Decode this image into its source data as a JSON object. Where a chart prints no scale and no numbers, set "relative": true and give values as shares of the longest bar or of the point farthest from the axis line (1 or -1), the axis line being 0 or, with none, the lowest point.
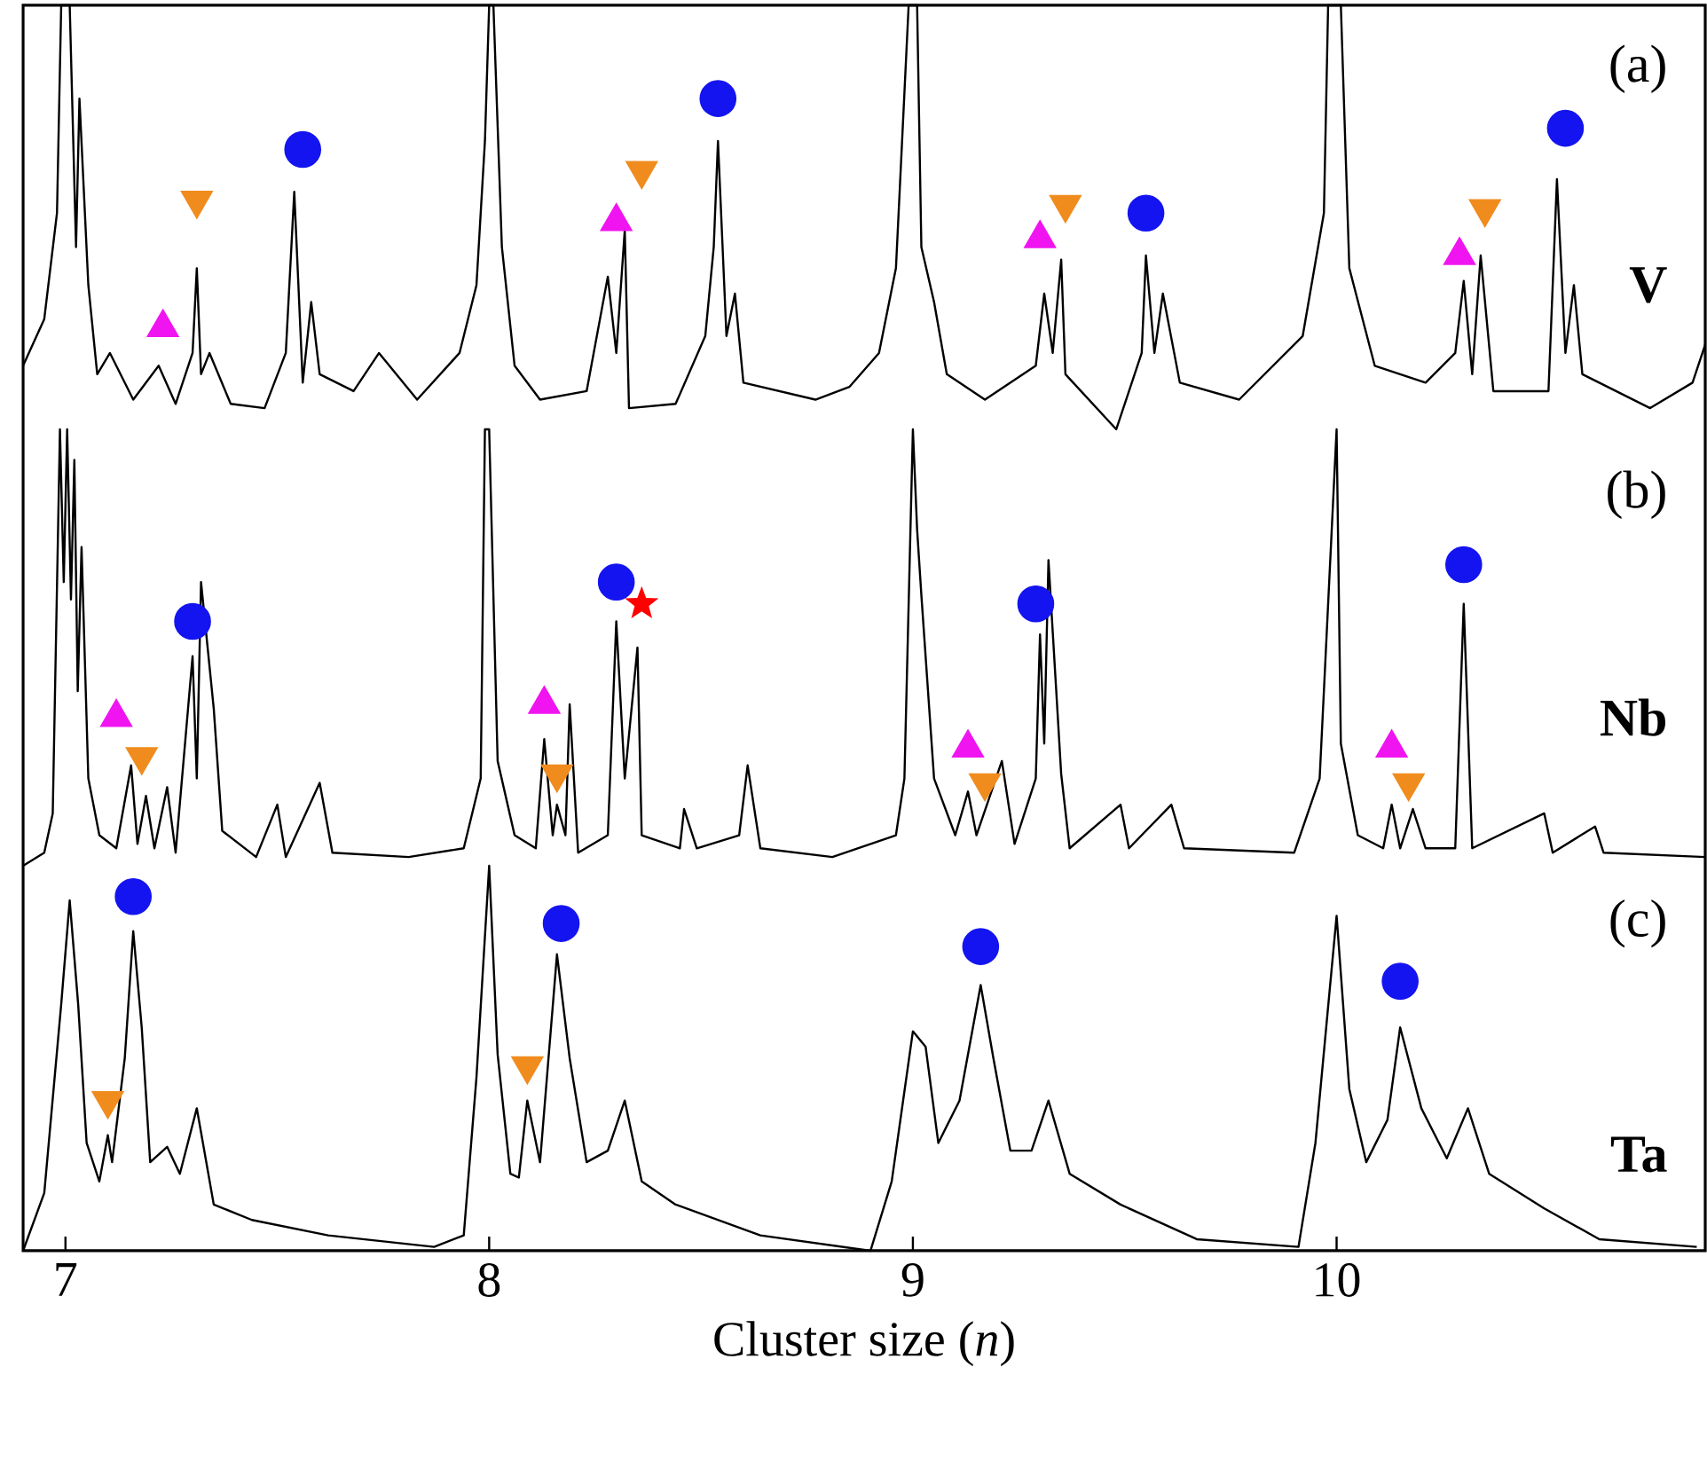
{
  "chart_data": [
    {
      "type": "line",
      "relative": true,
      "xlim": [
        6.9,
        10.87
      ],
      "tick_labels": false,
      "annotations": [
        "(a)"
      ],
      "series": [
        {
          "name": "V",
          "color": "#000000",
          "x": [
            6.9,
            6.95,
            6.98,
            6.99,
            7.01,
            7.025,
            7.033,
            7.054,
            7.075,
            7.105,
            7.16,
            7.22,
            7.26,
            7.3,
            7.31,
            7.32,
            7.34,
            7.39,
            7.47,
            7.52,
            7.54,
            7.56,
            7.58,
            7.6,
            7.68,
            7.74,
            7.83,
            7.93,
            7.97,
            7.99,
            8.0,
            8.01,
            8.03,
            8.06,
            8.12,
            8.23,
            8.28,
            8.3,
            8.32,
            8.33,
            8.44,
            8.51,
            8.53,
            8.54,
            8.56,
            8.58,
            8.6,
            8.77,
            8.85,
            8.92,
            8.96,
            8.99,
            9.01,
            9.02,
            9.05,
            9.08,
            9.17,
            9.29,
            9.31,
            9.33,
            9.35,
            9.36,
            9.48,
            9.54,
            9.55,
            9.57,
            9.59,
            9.63,
            9.77,
            9.92,
            9.97,
            9.98,
            10.01,
            10.03,
            10.09,
            10.21,
            10.28,
            10.3,
            10.32,
            10.34,
            10.37,
            10.5,
            10.52,
            10.54,
            10.56,
            10.58,
            10.74,
            10.84,
            10.87
          ],
          "values": [
            0.15,
            0.26,
            0.51,
            1,
            1,
            0.43,
            0.78,
            0.34,
            0.13,
            0.18,
            0.07,
            0.15,
            0.06,
            0.18,
            0.38,
            0.13,
            0.18,
            0.06,
            0.05,
            0.18,
            0.56,
            0.11,
            0.3,
            0.13,
            0.09,
            0.18,
            0.07,
            0.18,
            0.34,
            0.68,
            1,
            1,
            0.43,
            0.15,
            0.07,
            0.09,
            0.36,
            0.18,
            0.47,
            0.05,
            0.06,
            0.22,
            0.43,
            0.68,
            0.22,
            0.32,
            0.11,
            0.07,
            0.1,
            0.18,
            0.38,
            1,
            1,
            0.43,
            0.3,
            0.13,
            0.07,
            0.15,
            0.32,
            0.18,
            0.4,
            0.13,
            0,
            0.18,
            0.41,
            0.18,
            0.32,
            0.11,
            0.07,
            0.22,
            0.51,
            1,
            1,
            0.38,
            0.15,
            0.11,
            0.18,
            0.35,
            0.13,
            0.41,
            0.09,
            0.09,
            0.59,
            0.18,
            0.34,
            0.13,
            0.05,
            0.11,
            0.2
          ]
        },
        {
          "type": "scatter",
          "marker": "circle",
          "color": "#1414f0",
          "x": [
            7.56,
            8.54,
            9.55,
            10.54
          ],
          "values": [
            0.66,
            0.78,
            0.51,
            0.71
          ]
        },
        {
          "type": "scatter",
          "marker": "triangle",
          "color": "#f014f0",
          "x": [
            7.23,
            8.3,
            9.3,
            10.29
          ],
          "values": [
            0.24,
            0.49,
            0.45,
            0.41
          ]
        },
        {
          "type": "scatter",
          "marker": "triangle-down",
          "color": "#f08c1e",
          "x": [
            7.31,
            8.36,
            9.36,
            10.35
          ],
          "values": [
            0.54,
            0.61,
            0.53,
            0.52
          ]
        }
      ]
    },
    {
      "type": "line",
      "relative": true,
      "xlim": [
        6.9,
        10.87
      ],
      "tick_labels": false,
      "annotations": [
        "(b)"
      ],
      "series": [
        {
          "name": "Nb",
          "color": "#000000",
          "x": [
            6.9,
            6.95,
            6.97,
            6.987,
            6.996,
            7.004,
            7.013,
            7.021,
            7.029,
            7.038,
            7.054,
            7.08,
            7.12,
            7.155,
            7.17,
            7.19,
            7.21,
            7.24,
            7.26,
            7.3,
            7.31,
            7.32,
            7.35,
            7.37,
            7.45,
            7.5,
            7.52,
            7.6,
            7.63,
            7.81,
            7.94,
            7.98,
            7.99,
            8.0,
            8.02,
            8.06,
            8.11,
            8.13,
            8.15,
            8.16,
            8.18,
            8.19,
            8.21,
            8.28,
            8.3,
            8.32,
            8.35,
            8.36,
            8.45,
            8.46,
            8.49,
            8.59,
            8.61,
            8.64,
            8.81,
            8.96,
            8.98,
            9.0,
            9.01,
            9.02,
            9.05,
            9.1,
            9.13,
            9.15,
            9.21,
            9.24,
            9.29,
            9.3,
            9.31,
            9.32,
            9.35,
            9.37,
            9.49,
            9.51,
            9.61,
            9.64,
            9.9,
            9.96,
            10.0,
            10.01,
            10.05,
            10.11,
            10.13,
            10.15,
            10.18,
            10.21,
            10.28,
            10.3,
            10.32,
            10.49,
            10.51,
            10.61,
            10.63,
            10.87
          ],
          "values": [
            0,
            0.03,
            0.12,
            1,
            0.65,
            1,
            0.61,
            0.93,
            0.4,
            0.73,
            0.2,
            0.07,
            0.04,
            0.23,
            0.05,
            0.16,
            0.04,
            0.18,
            0.03,
            0.48,
            0.2,
            0.65,
            0.36,
            0.08,
            0.02,
            0.14,
            0.02,
            0.19,
            0.03,
            0.02,
            0.04,
            0.2,
            1,
            1,
            0.24,
            0.07,
            0.04,
            0.29,
            0.07,
            0.14,
            0.07,
            0.37,
            0.03,
            0.07,
            0.56,
            0.2,
            0.5,
            0.07,
            0.04,
            0.13,
            0.04,
            0.07,
            0.23,
            0.04,
            0.02,
            0.07,
            0.2,
            1,
            0.77,
            0.62,
            0.2,
            0.07,
            0.17,
            0.07,
            0.24,
            0.05,
            0.2,
            0.53,
            0.28,
            0.7,
            0.21,
            0.04,
            0.14,
            0.04,
            0.14,
            0.04,
            0.03,
            0.2,
            1,
            0.28,
            0.07,
            0.04,
            0.14,
            0.04,
            0.13,
            0.04,
            0.04,
            0.6,
            0.04,
            0.12,
            0.03,
            0.09,
            0.03,
            0.02
          ]
        },
        {
          "type": "scatter",
          "marker": "circle",
          "color": "#1414f0",
          "x": [
            7.3,
            8.3,
            9.29,
            10.3
          ],
          "values": [
            0.56,
            0.65,
            0.6,
            0.69
          ]
        },
        {
          "type": "scatter",
          "marker": "triangle",
          "color": "#f014f0",
          "x": [
            7.12,
            8.13,
            9.13,
            10.13
          ],
          "values": [
            0.34,
            0.37,
            0.27,
            0.27
          ]
        },
        {
          "type": "scatter",
          "marker": "triangle-down",
          "color": "#f08c1e",
          "x": [
            7.18,
            8.16,
            9.17,
            10.17
          ],
          "values": [
            0.25,
            0.21,
            0.19,
            0.19
          ]
        },
        {
          "type": "scatter",
          "marker": "star",
          "color": "#ff0000",
          "x": [
            8.36
          ],
          "values": [
            0.6
          ]
        }
      ]
    },
    {
      "type": "line",
      "relative": true,
      "xlim": [
        6.9,
        10.87
      ],
      "xticks": [
        7,
        8,
        9,
        10
      ],
      "tick_labels": "x",
      "xlabel": "Cluster size (*n*)",
      "annotations": [
        "(c)"
      ],
      "series": [
        {
          "name": "Ta",
          "color": "#000000",
          "x": [
            6.9,
            6.95,
            6.99,
            7.01,
            7.03,
            7.05,
            7.08,
            7.1,
            7.11,
            7.14,
            7.16,
            7.18,
            7.2,
            7.24,
            7.27,
            7.31,
            7.35,
            7.44,
            7.62,
            7.87,
            7.94,
            7.97,
            8.0,
            8.02,
            8.05,
            8.07,
            8.09,
            8.12,
            8.16,
            8.19,
            8.23,
            8.28,
            8.32,
            8.36,
            8.44,
            8.64,
            8.9,
            8.95,
            9.0,
            9.03,
            9.06,
            9.11,
            9.16,
            9.19,
            9.23,
            9.28,
            9.32,
            9.37,
            9.49,
            9.67,
            9.91,
            9.95,
            10.0,
            10.03,
            10.07,
            10.12,
            10.15,
            10.2,
            10.26,
            10.31,
            10.36,
            10.49,
            10.62,
            10.85
          ],
          "values": [
            0,
            0.15,
            0.64,
            0.91,
            0.64,
            0.28,
            0.18,
            0.3,
            0.23,
            0.5,
            0.83,
            0.58,
            0.23,
            0.27,
            0.2,
            0.37,
            0.12,
            0.08,
            0.04,
            0.01,
            0.04,
            0.45,
            1,
            0.51,
            0.2,
            0.19,
            0.39,
            0.23,
            0.77,
            0.5,
            0.23,
            0.26,
            0.39,
            0.18,
            0.12,
            0.04,
            0,
            0.18,
            0.57,
            0.53,
            0.28,
            0.39,
            0.69,
            0.5,
            0.26,
            0.26,
            0.39,
            0.2,
            0.12,
            0.03,
            0.01,
            0.28,
            0.87,
            0.42,
            0.23,
            0.34,
            0.58,
            0.37,
            0.24,
            0.37,
            0.2,
            0.11,
            0.03,
            0.01
          ]
        },
        {
          "type": "scatter",
          "marker": "circle",
          "color": "#1414f0",
          "x": [
            7.16,
            8.17,
            9.16,
            10.15
          ],
          "values": [
            0.92,
            0.85,
            0.79,
            0.7
          ]
        },
        {
          "type": "scatter",
          "marker": "triangle-down",
          "color": "#f08c1e",
          "x": [
            7.1,
            8.09
          ],
          "values": [
            0.39,
            0.48
          ]
        }
      ]
    }
  ]
}
